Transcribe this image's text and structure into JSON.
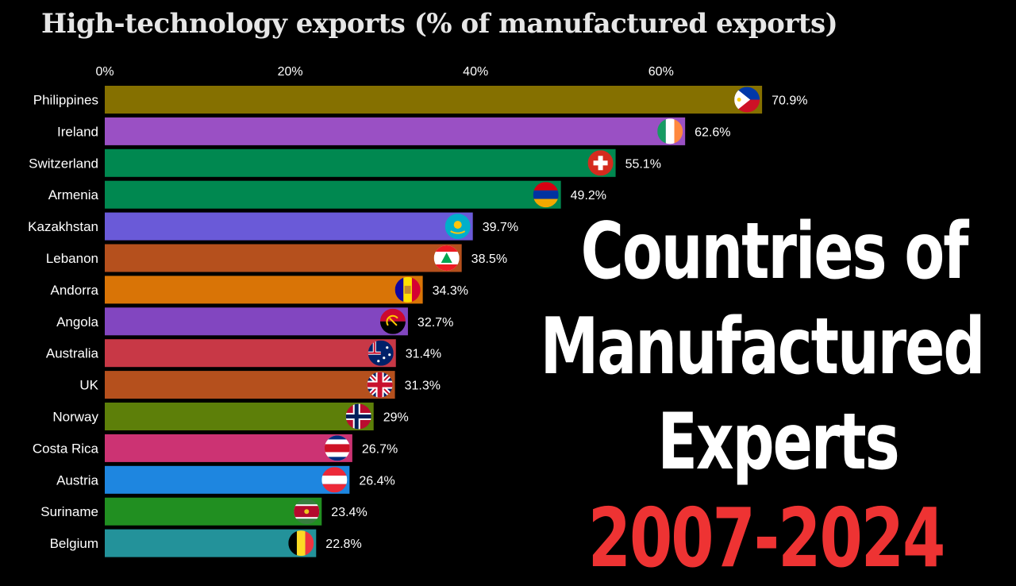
{
  "chart_data": {
    "type": "bar",
    "orientation": "horizontal",
    "title": "High-technology exports (% of manufactured exports)",
    "xlim": [
      0,
      100
    ],
    "xticks": [
      0,
      20,
      40,
      60
    ],
    "xtick_labels": [
      "0%",
      "20%",
      "40%",
      "60%"
    ],
    "categories": [
      "Philippines",
      "Ireland",
      "Switzerland",
      "Armenia",
      "Kazakhstan",
      "Lebanon",
      "Andorra",
      "Angola",
      "Australia",
      "UK",
      "Norway",
      "Costa Rica",
      "Austria",
      "Suriname",
      "Belgium"
    ],
    "values": [
      70.9,
      62.6,
      55.1,
      49.2,
      39.7,
      38.5,
      34.3,
      32.7,
      31.4,
      31.3,
      29,
      26.7,
      26.4,
      23.4,
      22.8
    ],
    "value_labels": [
      "70.9%",
      "62.6%",
      "55.1%",
      "49.2%",
      "39.7%",
      "38.5%",
      "34.3%",
      "32.7%",
      "31.4%",
      "31.3%",
      "29%",
      "26.7%",
      "26.4%",
      "23.4%",
      "22.8%"
    ],
    "colors": [
      "#857000",
      "#9a50c4",
      "#008850",
      "#008850",
      "#6a5ad8",
      "#b5501d",
      "#d97406",
      "#8246c0",
      "#c83846",
      "#b5501d",
      "#5d7f09",
      "#cc3373",
      "#1e86e0",
      "#218f21",
      "#23929a"
    ],
    "flags": [
      "philippines-flag",
      "ireland-flag",
      "switzerland-flag",
      "armenia-flag",
      "kazakhstan-flag",
      "lebanon-flag",
      "andorra-flag",
      "angola-flag",
      "australia-flag",
      "uk-flag",
      "norway-flag",
      "costa-rica-flag",
      "austria-flag",
      "suriname-flag",
      "belgium-flag"
    ],
    "grid": false,
    "legend": "none"
  },
  "overlay": {
    "line1": "Countries of",
    "line2": "Manufactured",
    "line3": "Experts",
    "line4": "2007-2024",
    "line4_color": "#ee3333"
  }
}
